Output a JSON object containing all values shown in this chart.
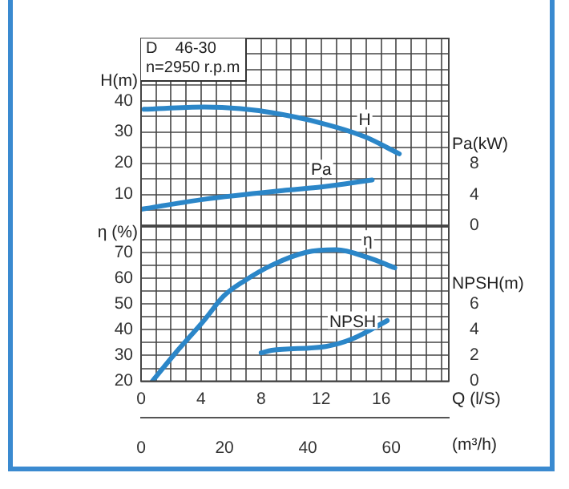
{
  "chart_data": [
    {
      "type": "line",
      "title": "D    46-30",
      "subtitle": "n=2950 r.p.m",
      "ylabel": "H(m)",
      "y2label": "Pa(kW)",
      "xlim": [
        0,
        20.5
      ],
      "xticks": [
        0,
        1,
        2,
        3,
        4,
        5,
        6,
        7,
        8,
        9,
        10,
        11,
        12,
        13,
        14,
        15,
        16,
        17,
        18,
        19,
        20
      ],
      "ylim": [
        0,
        60
      ],
      "yticks": [
        {
          "value": 0,
          "label": null
        },
        {
          "value": 5,
          "label": null
        },
        10,
        {
          "value": 15,
          "label": null
        },
        20,
        {
          "value": 25,
          "label": null
        },
        30,
        {
          "value": 35,
          "label": null
        },
        40,
        {
          "value": 45,
          "label": null
        },
        {
          "value": 50,
          "label": null
        },
        {
          "value": 55,
          "label": null
        },
        {
          "value": 60,
          "label": null
        }
      ],
      "y2lim": [
        0,
        24.2
      ],
      "y2ticks": [
        0,
        4,
        8
      ],
      "tick_labels": "y",
      "grid": true,
      "legend": false,
      "marker": "none",
      "line_style": "solid",
      "series": [
        {
          "name": "H",
          "color": "#2b86c8",
          "x": [
            0.2,
            4.2,
            6.6,
            8.7,
            11.9,
            14.9,
            17.2
          ],
          "values": [
            37.3,
            38,
            37.5,
            36.2,
            33,
            28.5,
            23
          ]
        },
        {
          "name": "Pa",
          "color": "#2b86c8",
          "axis": "y2",
          "x": [
            0,
            4.2,
            9.8,
            12,
            15.4
          ],
          "values": [
            2.1,
            3.4,
            4.6,
            5,
            5.9
          ]
        }
      ]
    },
    {
      "type": "line",
      "xlabel": "Q (l/S)",
      "x2label": "(m³/h)",
      "ylabel": "η (%)",
      "y2label": "NPSH(m)",
      "xlim": [
        0,
        20.5
      ],
      "xticks": [
        0,
        {
          "value": 1,
          "label": null
        },
        {
          "value": 2,
          "label": null
        },
        {
          "value": 3,
          "label": null
        },
        4,
        {
          "value": 5,
          "label": null
        },
        {
          "value": 6,
          "label": null
        },
        {
          "value": 7,
          "label": null
        },
        8,
        {
          "value": 9,
          "label": null
        },
        {
          "value": 10,
          "label": null
        },
        {
          "value": 11,
          "label": null
        },
        12,
        {
          "value": 13,
          "label": null
        },
        {
          "value": 14,
          "label": null
        },
        {
          "value": 15,
          "label": null
        },
        16,
        {
          "value": 17,
          "label": null
        },
        {
          "value": 18,
          "label": null
        },
        {
          "value": 19,
          "label": null
        },
        {
          "value": 20,
          "label": null
        }
      ],
      "x2lim": [
        0,
        73.8
      ],
      "x2ticks": [
        0,
        20,
        40,
        60
      ],
      "ylim": [
        20,
        80
      ],
      "yticks": [
        20,
        {
          "value": 25,
          "label": null
        },
        30,
        {
          "value": 35,
          "label": null
        },
        40,
        {
          "value": 45,
          "label": null
        },
        50,
        {
          "value": 55,
          "label": null
        },
        60,
        {
          "value": 65,
          "label": null
        },
        70,
        {
          "value": 75,
          "label": null
        },
        {
          "value": 80,
          "label": null
        }
      ],
      "y2lim": [
        0,
        12
      ],
      "y2ticks": [
        0,
        2,
        4,
        6
      ],
      "grid": true,
      "legend": false,
      "marker": "none",
      "line_style": "solid",
      "series": [
        {
          "name": "η",
          "color": "#2b86c8",
          "x": [
            0.75,
            2.3,
            4.2,
            5.5,
            6.9,
            8.7,
            11,
            13,
            15.1,
            16.9
          ],
          "values": [
            20,
            31,
            43.6,
            53,
            59,
            65,
            70,
            71,
            68,
            64
          ]
        },
        {
          "name": "NPSH",
          "color": "#2b86c8",
          "axis": "y2",
          "x": [
            8,
            8.7,
            12.3,
            14.1,
            16.4
          ],
          "values": [
            2.2,
            2.4,
            2.7,
            3.3,
            4.7
          ]
        }
      ]
    }
  ]
}
